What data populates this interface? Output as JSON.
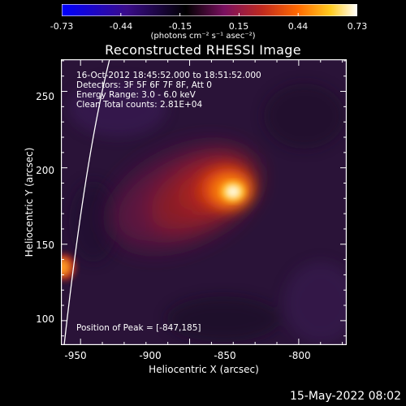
{
  "colorbar": {
    "ticks": [
      "-0.73",
      "-0.44",
      "-0.15",
      "0.15",
      "0.44",
      "0.73"
    ],
    "unit": "(photons cm⁻² s⁻¹ asec⁻²)"
  },
  "plot": {
    "title": "Reconstructed RHESSI Image",
    "annotations": [
      "16-Oct-2012 18:45:52.000 to 18:51:52.000",
      "Detectors: 3F 5F 6F 7F 8F, Att 0",
      "Energy Range: 3.0 - 6.0 keV",
      "Clean    Total counts: 2.81E+04"
    ],
    "peak_label": "Position of Peak = [-847,185]"
  },
  "footer": {
    "timestamp": "15-May-2022 08:02"
  },
  "chart_data": {
    "type": "heatmap",
    "title": "Reconstructed RHESSI Image",
    "xlabel": "Heliocentric X (arcsec)",
    "ylabel": "Heliocentric Y (arcsec)",
    "xlim": [
      -959,
      -828
    ],
    "ylim": [
      84,
      271
    ],
    "xticks": [
      -950,
      -900,
      -850,
      -800
    ],
    "yticks": [
      100,
      150,
      200,
      250
    ],
    "colorbar_range": [
      -0.73,
      0.73
    ],
    "colormap": [
      "#0000ff",
      "#3a0c8a",
      "#000000",
      "#7a1060",
      "#c02a1e",
      "#ff6a00",
      "#ffcc20",
      "#ffffff"
    ],
    "sources": [
      {
        "x": -847,
        "y": 185,
        "peak": 0.73
      },
      {
        "x": -958,
        "y": 137,
        "peak": 0.5
      }
    ],
    "peak": [
      -847,
      185
    ]
  }
}
